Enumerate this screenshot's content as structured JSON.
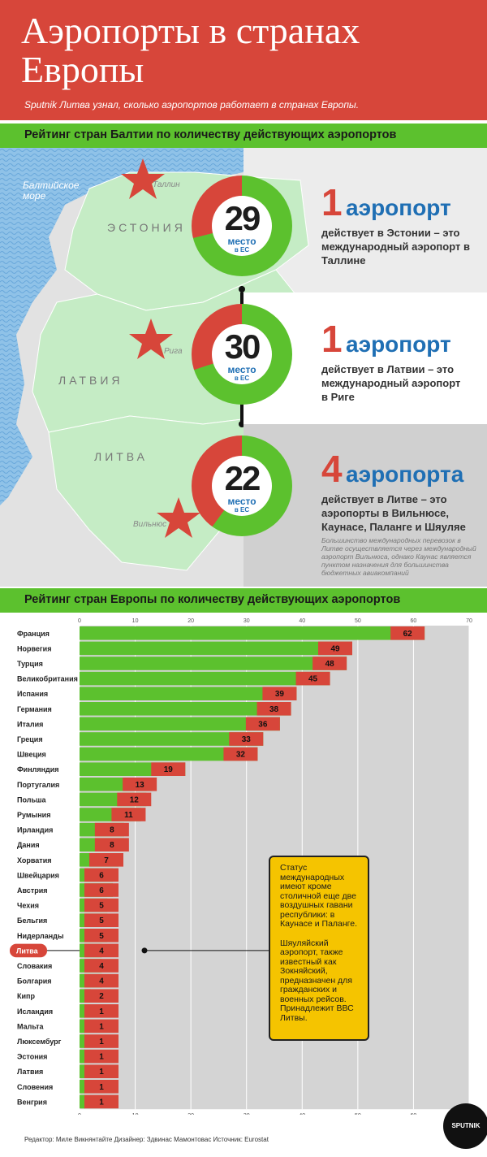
{
  "header": {
    "title": "Аэропорты в странах Европы",
    "subtitle": "Sputnik Литва узнал, сколько аэропортов работает в странах Европы."
  },
  "baltic": {
    "section_title": "Рейтинг стран Балтии по количеству действующих аэропортов",
    "map": {
      "sea": "Балтийское море",
      "countries": [
        "ЭСТОНИЯ",
        "ЛАТВИЯ",
        "ЛИТВА"
      ],
      "cities": [
        "Таллин",
        "Рига",
        "Вильнюс"
      ]
    },
    "items": [
      {
        "rank": "29",
        "rank_label": "место",
        "rank_sub": "в ЕС",
        "count": "1",
        "word": "аэропорт",
        "desc": "действует в Эстонии – это международный аэропорт в Таллине",
        "share": 0.29
      },
      {
        "rank": "30",
        "rank_label": "место",
        "rank_sub": "в ЕС",
        "count": "1",
        "word": "аэропорт",
        "desc": "действует в Латвии – это международный аэропорт в Риге",
        "share": 0.3
      },
      {
        "rank": "22",
        "rank_label": "место",
        "rank_sub": "в ЕС",
        "count": "4",
        "word": "аэропорта",
        "desc": "действует в Литве – это аэропорты в Вильнюсе, Каунасе, Паланге и Шяуляе",
        "share": 0.4
      }
    ],
    "note": "Большинство международных перевозок в Литве осуществляется через международный аэропорт Вильнюса, однако Каунас является пунктом назначения для большинства бюджетных авиакомпаний"
  },
  "europe": {
    "section_title": "Рейтинг стран Европы по количеству действующих аэропортов"
  },
  "chart_data": {
    "type": "bar",
    "orientation": "horizontal",
    "xlim": [
      0,
      70
    ],
    "ticks": [
      0,
      10,
      20,
      30,
      40,
      50,
      60,
      70
    ],
    "categories": [
      "Франция",
      "Норвегия",
      "Турция",
      "Великобритания",
      "Испания",
      "Германия",
      "Италия",
      "Греция",
      "Швеция",
      "Финляндия",
      "Португалия",
      "Польша",
      "Румыния",
      "Ирландия",
      "Дания",
      "Хорватия",
      "Швейцария",
      "Австрия",
      "Чехия",
      "Бельгия",
      "Нидерланды",
      "Литва",
      "Словакия",
      "Болгария",
      "Кипр",
      "Исландия",
      "Мальта",
      "Люксембург",
      "Эстония",
      "Латвия",
      "Словения",
      "Венгрия"
    ],
    "values": [
      62,
      49,
      48,
      45,
      39,
      38,
      36,
      33,
      32,
      19,
      13,
      12,
      11,
      8,
      8,
      7,
      6,
      6,
      5,
      5,
      5,
      4,
      4,
      4,
      2,
      1,
      1,
      1,
      1,
      1,
      1,
      1
    ],
    "highlight": "Литва",
    "colors": {
      "high": "#5cc12e",
      "low": "#d7463a",
      "track": "#d4d4d4",
      "highlight": "#d7463a"
    }
  },
  "callout": {
    "p1": "Статус международных имеют кроме столичной еще две воздушных гавани республики: в Каунасе и Паланге.",
    "p2": "Шяуляйский аэропорт, также известный как Зокняйский, предназначен для гражданских и военных рейсов. Принадлежит ВВС Литвы."
  },
  "footer": {
    "credits": "Редактор: Миле Викнянтайте  Дизайнер: Здвинас Мамонтовас  Источник: Eurostat",
    "logo": "SPUTNIK"
  }
}
